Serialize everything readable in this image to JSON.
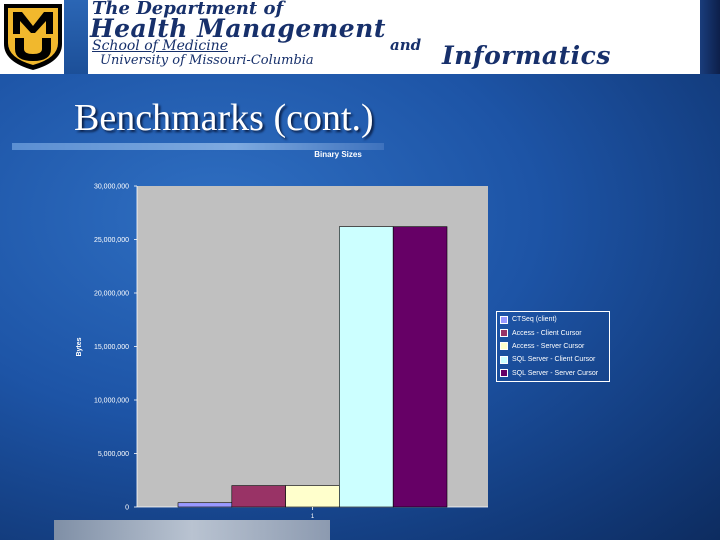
{
  "banner": {
    "line1": "The Department of",
    "line2": "Health Management",
    "line3": "School of Medicine",
    "line4": "University of Missouri-Columbia",
    "line5": "and",
    "line6": "Informatics",
    "logo_letters": "MU"
  },
  "slide_title": "Benchmarks (cont.)",
  "colors": {
    "plot_bg": "#c0c0c0",
    "series": [
      "#9999ff",
      "#993366",
      "#ffffcc",
      "#ccffff",
      "#660066"
    ]
  },
  "chart_data": {
    "type": "bar",
    "title": "Binary Sizes",
    "xlabel": "",
    "ylabel": "Bytes",
    "categories": [
      "1"
    ],
    "ylim": [
      0,
      30000000
    ],
    "yticks": [
      "0",
      "5,000,000",
      "10,000,000",
      "15,000,000",
      "20,000,000",
      "25,000,000",
      "30,000,000"
    ],
    "grid": false,
    "legend_position": "right",
    "series": [
      {
        "name": "CTSeq (client)",
        "values": [
          400000
        ]
      },
      {
        "name": "Access - Client Cursor",
        "values": [
          2000000
        ]
      },
      {
        "name": "Access - Server Cursor",
        "values": [
          2000000
        ]
      },
      {
        "name": "SQL Server - Client Cursor",
        "values": [
          26200000
        ]
      },
      {
        "name": "SQL Server - Server Cursor",
        "values": [
          26200000
        ]
      }
    ]
  }
}
